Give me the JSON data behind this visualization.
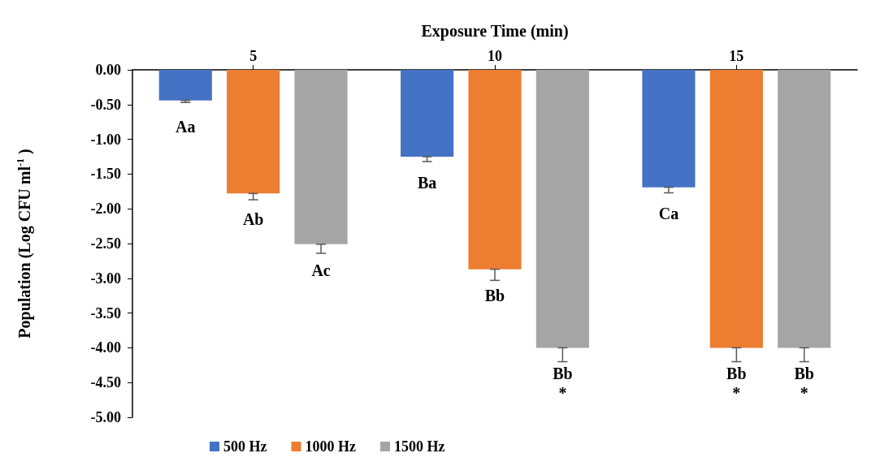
{
  "chart_data": {
    "type": "bar",
    "xlabel": "Exposure Time (min)",
    "ylabel": "Population (Log CFU ml$^{-1}$ )",
    "categories": [
      "5",
      "10",
      "15"
    ],
    "series": [
      {
        "name": "500 Hz",
        "color": "#4472c4",
        "values": [
          -0.44,
          -1.25,
          -1.69
        ],
        "errors": [
          [
            -0.47,
            -0.44
          ],
          [
            -1.32,
            -1.25
          ],
          [
            -1.77,
            -1.69
          ]
        ],
        "value_labels": [
          "Aa",
          "Ba",
          "Ca"
        ]
      },
      {
        "name": "1000 Hz",
        "color": "#ed7d31",
        "values": [
          -1.78,
          -2.87,
          -4.0
        ],
        "errors": [
          [
            -1.87,
            -1.78
          ],
          [
            -3.03,
            -2.87
          ],
          [
            -4.2,
            -4.0
          ]
        ],
        "value_labels": [
          "Ab",
          "Bb",
          "Bb\n*"
        ]
      },
      {
        "name": "1500 Hz",
        "color": "#a5a5a5",
        "values": [
          -2.51,
          -4.0,
          -4.0
        ],
        "errors": [
          [
            -2.64,
            -2.51
          ],
          [
            -4.2,
            -4.0
          ],
          [
            -4.2,
            -4.0
          ]
        ],
        "value_labels": [
          "Ac",
          "Bb\n*",
          "Bb\n*"
        ]
      }
    ],
    "ylim": [
      -5,
      0
    ],
    "yticks": [
      {
        "value": 0,
        "label": "0.00"
      },
      {
        "value": -0.5,
        "label": "-0.50"
      },
      {
        "value": -1,
        "label": "-1.00"
      },
      {
        "value": -1.5,
        "label": "-1.50"
      },
      {
        "value": -2,
        "label": "-2.00"
      },
      {
        "value": -2.5,
        "label": "-2.50"
      },
      {
        "value": -3,
        "label": "-3.00"
      },
      {
        "value": -3.5,
        "label": "-3.50"
      },
      {
        "value": -4,
        "label": "-4.00"
      },
      {
        "value": -4.5,
        "label": "-4.50"
      },
      {
        "value": -5,
        "label": "-5.00"
      }
    ],
    "grid": false,
    "legend": "bottom"
  }
}
